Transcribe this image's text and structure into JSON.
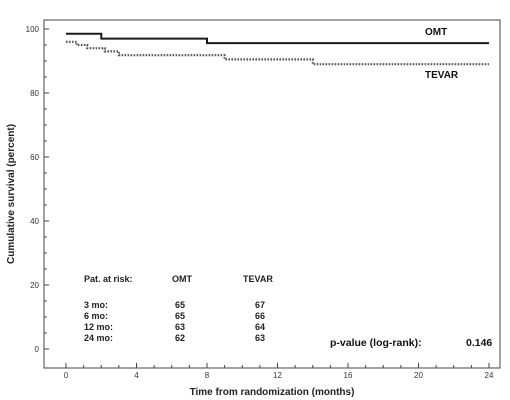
{
  "chart_data": {
    "type": "line",
    "title": "",
    "xlabel": "Time from randomization (months)",
    "ylabel": "Cumulative survival (percent)",
    "xlim": [
      0,
      24
    ],
    "ylim": [
      0,
      100
    ],
    "xticks": [
      0,
      4,
      8,
      12,
      16,
      20,
      24
    ],
    "yticks": [
      0,
      20,
      40,
      60,
      80,
      100
    ],
    "grid": false,
    "series": [
      {
        "name": "OMT",
        "color": "#1a1a1a",
        "dash": "solid",
        "step_x": [
          0,
          2,
          2,
          8,
          8,
          24
        ],
        "step_y": [
          98.5,
          98.5,
          97,
          97,
          95.6,
          95.6
        ]
      },
      {
        "name": "TEVAR",
        "color": "#555555",
        "dash": "dotted",
        "step_x": [
          0,
          0.6,
          0.6,
          1.2,
          1.2,
          2.2,
          2.2,
          3,
          3,
          9,
          9,
          14,
          14,
          24
        ],
        "step_y": [
          96,
          96,
          95,
          95,
          94,
          94,
          93,
          93,
          91.8,
          91.8,
          90.5,
          90.5,
          89,
          89
        ]
      }
    ],
    "risk_table": {
      "header": [
        "Pat. at risk:",
        "OMT",
        "TEVAR"
      ],
      "rows": [
        {
          "label": "3 mo:",
          "omt": "65",
          "tevar": "67"
        },
        {
          "label": "6 mo:",
          "omt": "65",
          "tevar": "66"
        },
        {
          "label": "12 mo:",
          "omt": "63",
          "tevar": "64"
        },
        {
          "label": "24 mo:",
          "omt": "62",
          "tevar": "63"
        }
      ]
    },
    "annotation": {
      "label": "p-value (log-rank):",
      "value": "0.146"
    }
  }
}
